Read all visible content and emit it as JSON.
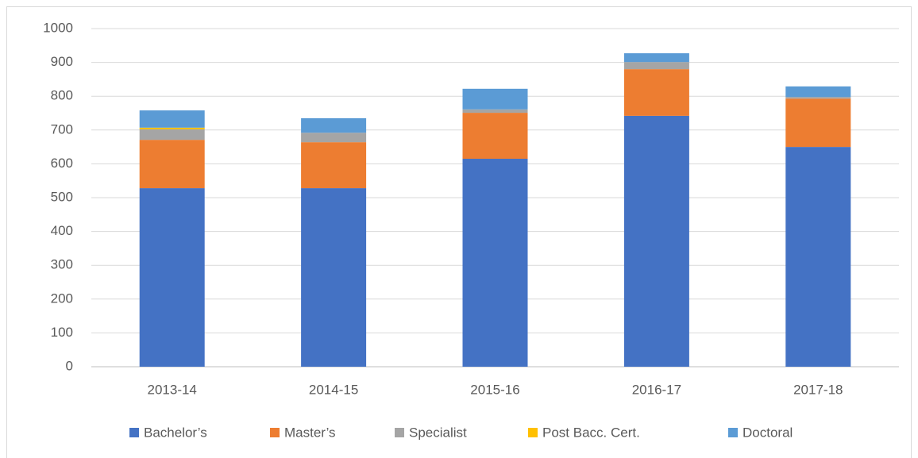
{
  "chart_data": {
    "type": "stacked_bar",
    "categories": [
      "2013-14",
      "2014-15",
      "2015-16",
      "2016-17",
      "2017-18"
    ],
    "series": [
      {
        "name": "Bachelor’s",
        "color": "#4472c4",
        "values": [
          528,
          528,
          615,
          742,
          650
        ]
      },
      {
        "name": "Master’s",
        "color": "#ed7d31",
        "values": [
          143,
          136,
          136,
          138,
          143
        ]
      },
      {
        "name": "Specialist",
        "color": "#a5a5a5",
        "values": [
          31,
          28,
          10,
          21,
          5
        ]
      },
      {
        "name": "Post Bacc. Cert.",
        "color": "#ffc000",
        "values": [
          5,
          0,
          0,
          0,
          0
        ]
      },
      {
        "name": "Doctoral",
        "color": "#5b9bd5",
        "values": [
          51,
          43,
          61,
          26,
          31
        ]
      }
    ],
    "ylim": [
      0,
      1000
    ],
    "yticks": [
      0,
      100,
      200,
      300,
      400,
      500,
      600,
      700,
      800,
      900,
      1000
    ],
    "grid": true,
    "legend": "bottom"
  }
}
